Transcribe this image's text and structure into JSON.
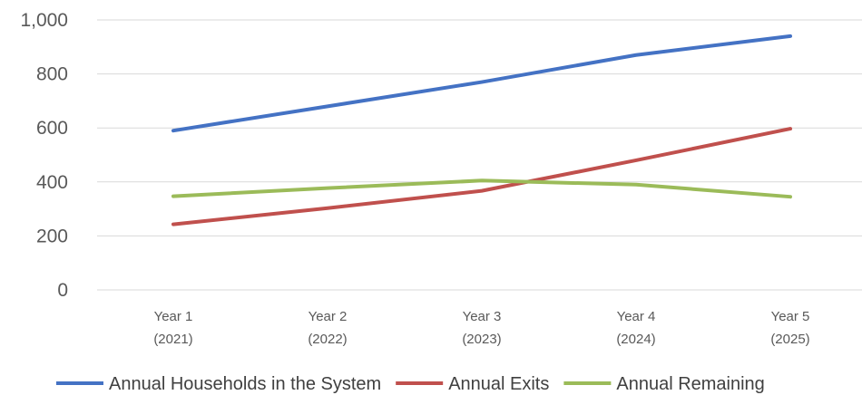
{
  "chart_data": {
    "type": "line",
    "title": "",
    "xlabel": "",
    "ylabel": "",
    "categories": [
      [
        "Year 1",
        "(2021)"
      ],
      [
        "Year 2",
        "(2022)"
      ],
      [
        "Year 3",
        "(2023)"
      ],
      [
        "Year 4",
        "(2024)"
      ],
      [
        "Year 5",
        "(2025)"
      ]
    ],
    "ylim": [
      0,
      1000
    ],
    "yticks": [
      0,
      200,
      400,
      600,
      800,
      1000
    ],
    "ytick_labels": [
      "0",
      "200",
      "400",
      "600",
      "800",
      "1,000"
    ],
    "grid": true,
    "legend_position": "bottom",
    "series": [
      {
        "name": "Annual Households in the System",
        "color": "#4472C4",
        "values": [
          590,
          680,
          770,
          870,
          940
        ]
      },
      {
        "name": "Annual Exits",
        "color": "#C0504D",
        "values": [
          243,
          303,
          367,
          480,
          597
        ]
      },
      {
        "name": "Annual Remaining",
        "color": "#9BBB59",
        "values": [
          347,
          377,
          405,
          390,
          345
        ]
      }
    ]
  }
}
